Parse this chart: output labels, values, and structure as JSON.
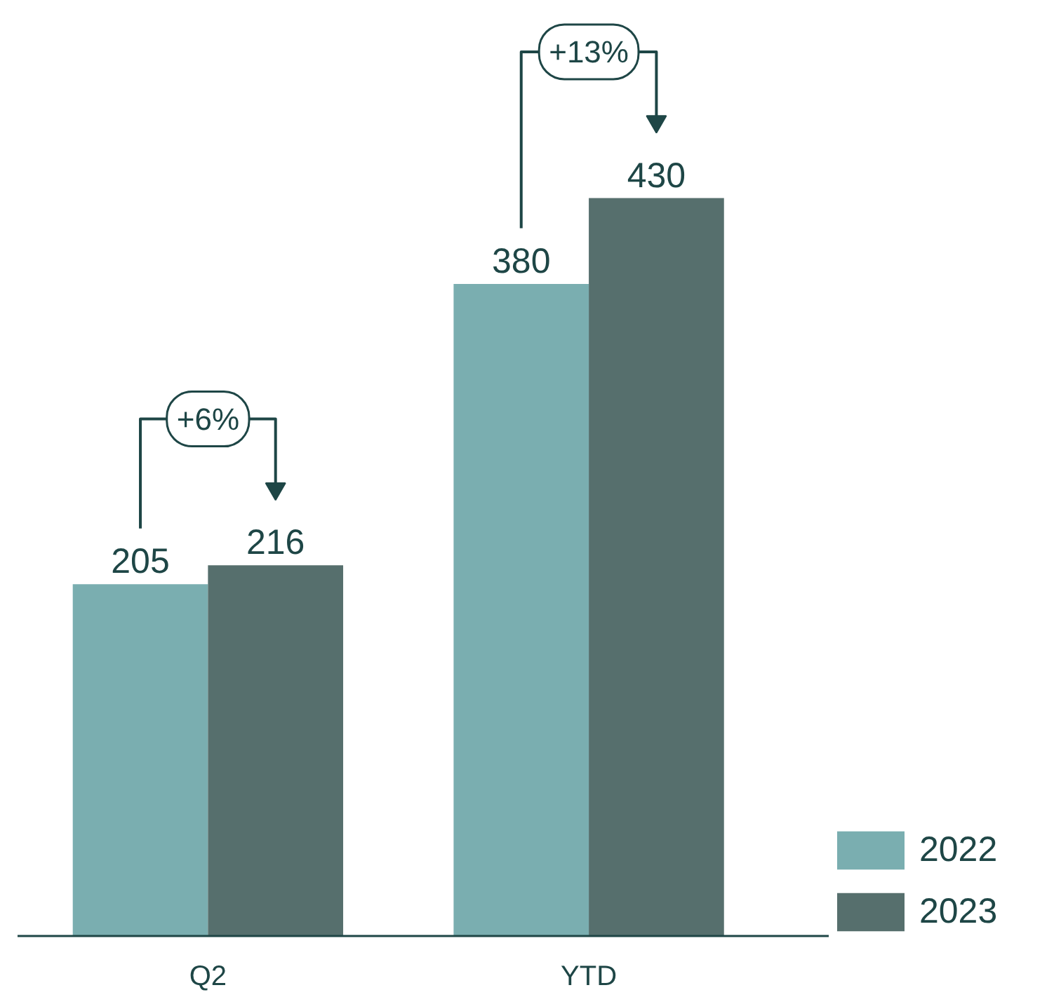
{
  "chart_data": {
    "type": "bar",
    "categories": [
      "Q2",
      "YTD"
    ],
    "series": [
      {
        "name": "2022",
        "color": "#7aaeb0",
        "values": [
          205,
          380
        ]
      },
      {
        "name": "2023",
        "color": "#566f6d",
        "values": [
          216,
          430
        ]
      }
    ],
    "data_labels": true,
    "legend": "bottom right",
    "annotations": [
      "+6%",
      "+13%"
    ]
  }
}
